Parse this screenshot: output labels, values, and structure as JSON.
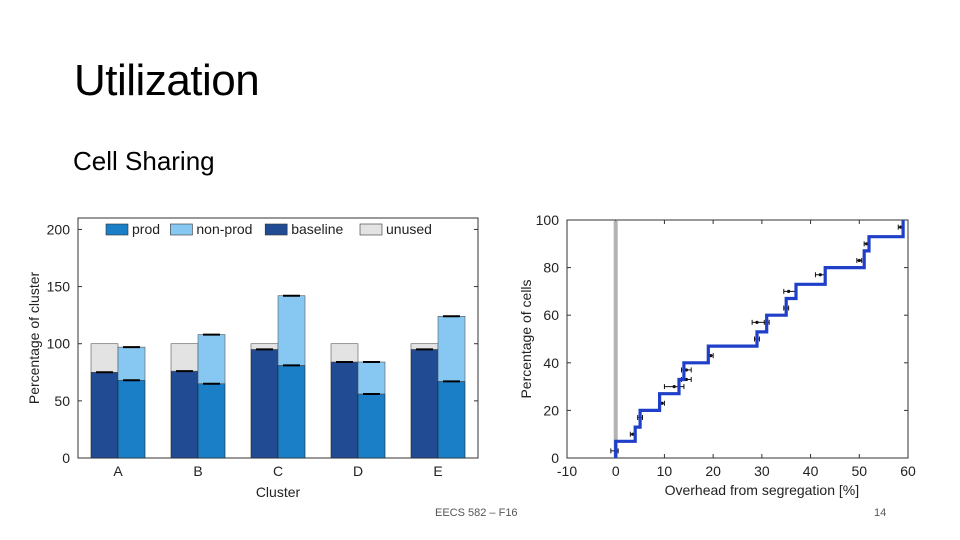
{
  "slide": {
    "title": "Utilization",
    "subtitle": "Cell Sharing",
    "footer_center": "EECS 582 – F16",
    "page_number": "14"
  },
  "chart_data": [
    {
      "type": "bar",
      "subtype": "stacked-grouped",
      "categories": [
        "A",
        "B",
        "C",
        "D",
        "E"
      ],
      "xlabel": "Cluster",
      "ylabel": "Percentage of cluster",
      "ylim": [
        0,
        210
      ],
      "yticks": [
        0,
        50,
        100,
        150,
        200
      ],
      "legend": [
        {
          "name": "prod",
          "color": "#1a7fc7"
        },
        {
          "name": "non-prod",
          "color": "#87c8f2"
        },
        {
          "name": "baseline",
          "color": "#214b93"
        },
        {
          "name": "unused",
          "color": "#e3e3e3"
        }
      ],
      "legend_position": "top",
      "grid": false,
      "baseline_bar": {
        "baseline": [
          75,
          76,
          95,
          84,
          95
        ],
        "unused": [
          25,
          24,
          5,
          16,
          5
        ]
      },
      "segregated_bar": {
        "prod": [
          68,
          65,
          81,
          56,
          67
        ],
        "non-prod": [
          29,
          43,
          61,
          28,
          57
        ]
      }
    },
    {
      "type": "line",
      "subtype": "step-cdf",
      "xlabel": "Overhead from segregation [%]",
      "ylabel": "Percentage of cells",
      "xlim": [
        -10,
        60
      ],
      "ylim": [
        0,
        100
      ],
      "xticks": [
        -10,
        0,
        10,
        20,
        30,
        40,
        50,
        60
      ],
      "yticks": [
        0,
        20,
        40,
        60,
        80,
        100
      ],
      "grid": false,
      "reference_line_x": 0,
      "series": [
        {
          "color": "#1f3fc8",
          "points": [
            [
              0,
              0
            ],
            [
              0,
              7
            ],
            [
              4,
              7
            ],
            [
              4,
              13
            ],
            [
              5,
              13
            ],
            [
              5,
              20
            ],
            [
              9,
              20
            ],
            [
              9,
              27
            ],
            [
              13,
              27
            ],
            [
              13,
              33
            ],
            [
              14,
              33
            ],
            [
              14,
              40
            ],
            [
              19,
              40
            ],
            [
              19,
              47
            ],
            [
              29,
              47
            ],
            [
              29,
              53
            ],
            [
              31,
              53
            ],
            [
              31,
              60
            ],
            [
              35,
              60
            ],
            [
              35,
              67
            ],
            [
              37,
              67
            ],
            [
              37,
              73
            ],
            [
              43,
              73
            ],
            [
              43,
              80
            ],
            [
              51,
              80
            ],
            [
              51,
              87
            ],
            [
              52,
              87
            ],
            [
              52,
              93
            ],
            [
              59,
              93
            ],
            [
              59,
              100
            ]
          ]
        }
      ],
      "error_bars": [
        {
          "x": 0,
          "y": 3,
          "xmin": -1,
          "xmax": 0.5
        },
        {
          "x": 3.5,
          "y": 10,
          "xmin": 3,
          "xmax": 4
        },
        {
          "x": 5,
          "y": 17,
          "xmin": 4.5,
          "xmax": 5.5
        },
        {
          "x": 9.5,
          "y": 23,
          "xmin": 9,
          "xmax": 10
        },
        {
          "x": 12,
          "y": 30,
          "xmin": 10,
          "xmax": 14
        },
        {
          "x": 14.5,
          "y": 33,
          "xmin": 13.5,
          "xmax": 15.5
        },
        {
          "x": 14.5,
          "y": 37,
          "xmin": 13.5,
          "xmax": 15.5
        },
        {
          "x": 19.5,
          "y": 43,
          "xmin": 19,
          "xmax": 20
        },
        {
          "x": 29,
          "y": 50,
          "xmin": 28.5,
          "xmax": 29.5
        },
        {
          "x": 29,
          "y": 57,
          "xmin": 28,
          "xmax": 31
        },
        {
          "x": 31,
          "y": 57,
          "xmin": 30.5,
          "xmax": 31.5
        },
        {
          "x": 35,
          "y": 63,
          "xmin": 34.5,
          "xmax": 35.5
        },
        {
          "x": 35.5,
          "y": 70,
          "xmin": 34.5,
          "xmax": 37
        },
        {
          "x": 42,
          "y": 77,
          "xmin": 41,
          "xmax": 43
        },
        {
          "x": 50,
          "y": 83,
          "xmin": 49.5,
          "xmax": 50.5
        },
        {
          "x": 51.5,
          "y": 90,
          "xmin": 51,
          "xmax": 52
        },
        {
          "x": 58.5,
          "y": 97,
          "xmin": 58,
          "xmax": 59
        }
      ]
    }
  ]
}
